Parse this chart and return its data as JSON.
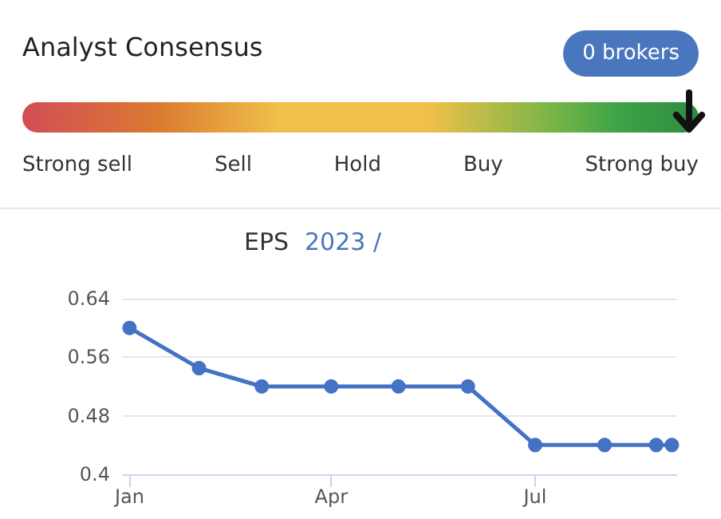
{
  "chart_data": [
    {
      "type": "other",
      "title": "Analyst Consensus",
      "annotations": [
        "0 brokers",
        "Strong sell",
        "Sell",
        "Hold",
        "Buy",
        "Strong buy"
      ]
    },
    {
      "type": "line",
      "title": "EPS",
      "subtitle": "2023 /",
      "x": [
        "2023-01-01",
        "2023-02-01",
        "2023-03-01",
        "2023-04-01",
        "2023-05-01",
        "2023-06-01",
        "2023-07-01",
        "2023-08-01",
        "2023-08-24",
        "2023-08-31"
      ],
      "series": [
        {
          "color": "#4472c4",
          "values": [
            0.6,
            0.545,
            0.52,
            0.52,
            0.52,
            0.52,
            0.44,
            0.44,
            0.44,
            0.44
          ]
        }
      ],
      "xlim": [
        "2022-12-29",
        "2023-09-02"
      ],
      "xticks": [
        {
          "value": "2023-01-01",
          "label": "Jan"
        },
        {
          "value": "2023-04-01",
          "label": "Apr"
        },
        {
          "value": "2023-07-01",
          "label": "Jul"
        }
      ],
      "ylim": [
        0.4,
        0.64
      ],
      "yticks": [
        {
          "value": 0.4,
          "label": "0.4"
        },
        0.48,
        0.56,
        0.64
      ],
      "grid": "y",
      "marker": "circle",
      "line_style": "solid"
    }
  ]
}
